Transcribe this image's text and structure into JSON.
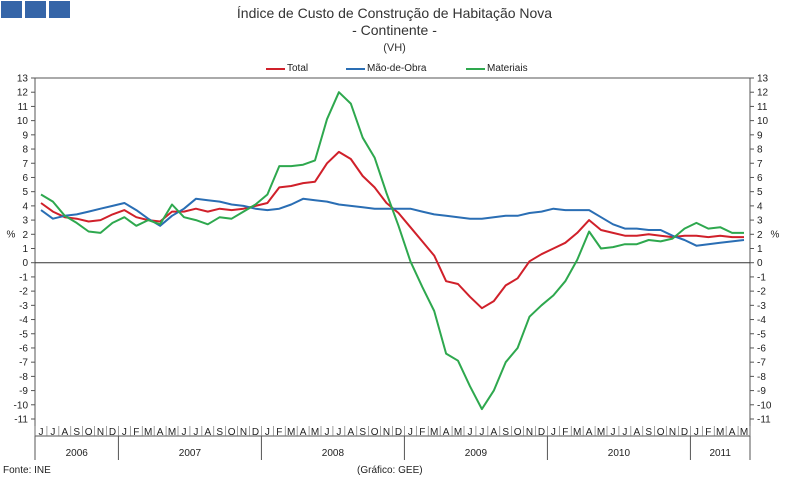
{
  "chart_data": {
    "type": "line",
    "title": "Índice de Custo de Construção de Habitação Nova",
    "subtitle": "- Continente -",
    "unit_note": "(VH)",
    "ylabel": "%",
    "ylim": [
      -11,
      13
    ],
    "yticks": [
      13,
      12,
      11,
      10,
      9,
      8,
      7,
      6,
      5,
      4,
      3,
      2,
      1,
      0,
      -1,
      -2,
      -3,
      -4,
      -5,
      -6,
      -7,
      -8,
      -9,
      -10,
      -11
    ],
    "month_labels": [
      "J",
      "J",
      "A",
      "S",
      "O",
      "N",
      "D",
      "J",
      "F",
      "M",
      "A",
      "M",
      "J",
      "J",
      "A",
      "S",
      "O",
      "N",
      "D",
      "J",
      "F",
      "M",
      "A",
      "M",
      "J",
      "J",
      "A",
      "S",
      "O",
      "N",
      "D",
      "J",
      "F",
      "M",
      "A",
      "M",
      "J",
      "J",
      "A",
      "S",
      "O",
      "N",
      "D",
      "J",
      "F",
      "M",
      "A",
      "M",
      "J",
      "J",
      "A",
      "S",
      "O",
      "N",
      "D",
      "J",
      "F",
      "M",
      "A",
      "M"
    ],
    "years": [
      {
        "label": "2006",
        "start": 0,
        "count": 7
      },
      {
        "label": "2007",
        "start": 7,
        "count": 12
      },
      {
        "label": "2008",
        "start": 19,
        "count": 12
      },
      {
        "label": "2009",
        "start": 31,
        "count": 12
      },
      {
        "label": "2010",
        "start": 43,
        "count": 12
      },
      {
        "label": "2011",
        "start": 55,
        "count": 5
      }
    ],
    "series": [
      {
        "name": "Total",
        "color": "#d0202a",
        "values": [
          4.2,
          3.6,
          3.2,
          3.1,
          2.9,
          3.0,
          3.4,
          3.7,
          3.2,
          3.0,
          2.9,
          3.6,
          3.6,
          3.8,
          3.6,
          3.8,
          3.7,
          3.8,
          4.0,
          4.2,
          5.3,
          5.4,
          5.6,
          5.7,
          7.0,
          7.8,
          7.3,
          6.1,
          5.3,
          4.2,
          3.5,
          2.5,
          1.5,
          0.5,
          -1.3,
          -1.5,
          -2.4,
          -3.2,
          -2.7,
          -1.6,
          -1.1,
          0.1,
          0.6,
          1.0,
          1.4,
          2.1,
          3.0,
          2.3,
          2.1,
          1.9,
          1.9,
          2.0,
          1.9,
          1.8,
          1.9,
          1.9,
          1.8,
          1.9,
          1.8,
          1.8
        ]
      },
      {
        "name": "Mão-de-Obra",
        "color": "#2a6eb4",
        "values": [
          3.7,
          3.1,
          3.3,
          3.4,
          3.6,
          3.8,
          4.0,
          4.2,
          3.7,
          3.1,
          2.6,
          3.3,
          3.8,
          4.5,
          4.4,
          4.3,
          4.1,
          4.0,
          3.8,
          3.7,
          3.8,
          4.1,
          4.5,
          4.4,
          4.3,
          4.1,
          4.0,
          3.9,
          3.8,
          3.8,
          3.8,
          3.8,
          3.6,
          3.4,
          3.3,
          3.2,
          3.1,
          3.1,
          3.2,
          3.3,
          3.3,
          3.5,
          3.6,
          3.8,
          3.7,
          3.7,
          3.7,
          3.2,
          2.7,
          2.4,
          2.4,
          2.3,
          2.3,
          1.9,
          1.6,
          1.2,
          1.3,
          1.4,
          1.5,
          1.6
        ]
      },
      {
        "name": "Materiais",
        "color": "#2ea84e",
        "values": [
          4.8,
          4.3,
          3.3,
          2.8,
          2.2,
          2.1,
          2.8,
          3.2,
          2.6,
          3.0,
          2.7,
          4.1,
          3.2,
          3.0,
          2.7,
          3.2,
          3.1,
          3.6,
          4.1,
          4.8,
          6.8,
          6.8,
          6.9,
          7.2,
          10.1,
          12.0,
          11.2,
          8.8,
          7.4,
          4.9,
          2.6,
          0.1,
          -1.7,
          -3.4,
          -6.4,
          -6.9,
          -8.7,
          -10.3,
          -9.0,
          -7.0,
          -6.0,
          -3.8,
          -3.0,
          -2.3,
          -1.3,
          0.2,
          2.2,
          1.0,
          1.1,
          1.3,
          1.3,
          1.6,
          1.5,
          1.7,
          2.4,
          2.8,
          2.4,
          2.5,
          2.1,
          2.1
        ]
      }
    ],
    "legend": "top-center"
  },
  "footer": {
    "source": "Fonte: INE",
    "credit": "(Gráfico: GEE)"
  }
}
